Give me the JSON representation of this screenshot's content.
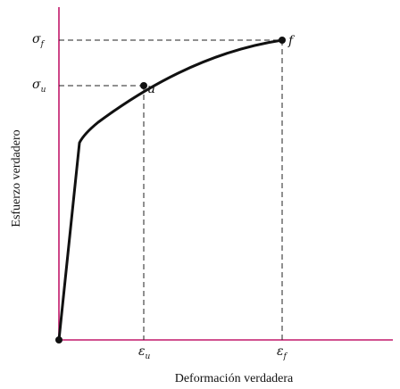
{
  "axes": {
    "xlabel": "Deformación verdadera",
    "ylabel": "Esfuerzo verdadero",
    "axis_color": "#c2186b",
    "curve_color": "#111111"
  },
  "points": {
    "u": {
      "label": "u",
      "strain_symbol": "ε",
      "strain_sub": "u",
      "stress_symbol": "σ",
      "stress_sub": "u"
    },
    "f": {
      "label": "f",
      "strain_symbol": "ε",
      "strain_sub": "f",
      "stress_symbol": "σ",
      "stress_sub": "f"
    }
  }
}
